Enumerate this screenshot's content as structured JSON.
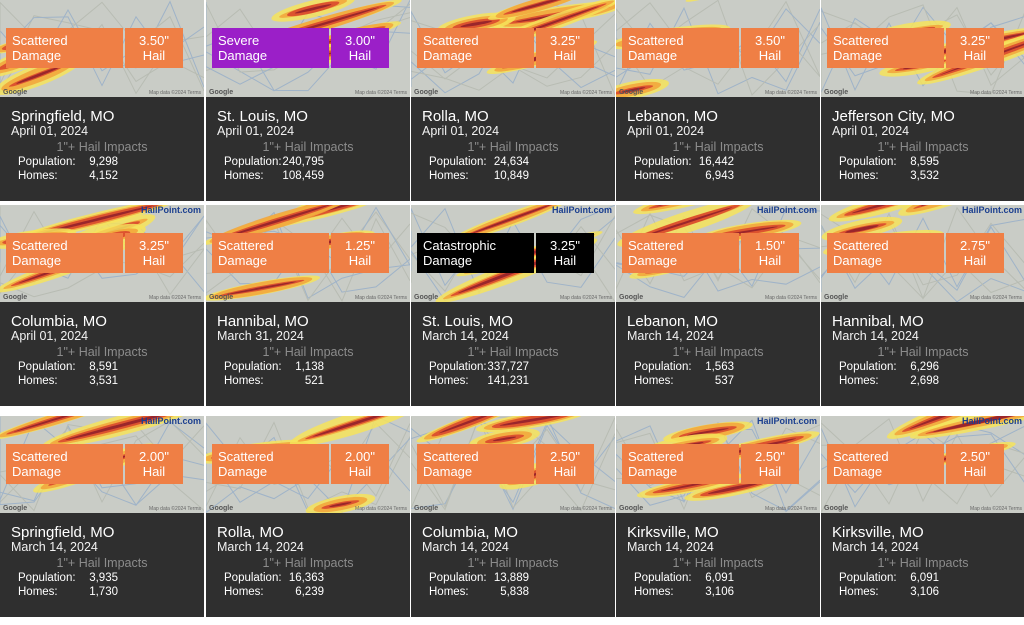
{
  "logo_text": "HailPoint.com",
  "google_text": "Google",
  "map_terms": "Map data ©2024 Terms",
  "labels": {
    "impacts": "1\"+ Hail Impacts",
    "population": "Population:",
    "homes": "Homes:"
  },
  "colors": {
    "Scattered": "#ef7f45",
    "Severe": "#9b1fc8",
    "Catastrophic": "#000000"
  },
  "cards": [
    {
      "damage1": "Scattered",
      "damage2": "Damage",
      "hail1": "3.50\"",
      "hail2": "Hail",
      "city": "Springfield, MO",
      "date": "April 01, 2024",
      "population": "9,298",
      "homes": "4,152",
      "logo": false
    },
    {
      "damage1": "Severe",
      "damage2": "Damage",
      "hail1": "3.00\"",
      "hail2": "Hail",
      "city": "St. Louis, MO",
      "date": "April 01, 2024",
      "population": "240,795",
      "homes": "108,459",
      "logo": false
    },
    {
      "damage1": "Scattered",
      "damage2": "Damage",
      "hail1": "3.25\"",
      "hail2": "Hail",
      "city": "Rolla, MO",
      "date": "April 01, 2024",
      "population": "24,634",
      "homes": "10,849",
      "logo": false
    },
    {
      "damage1": "Scattered",
      "damage2": "Damage",
      "hail1": "3.50\"",
      "hail2": "Hail",
      "city": "Lebanon, MO",
      "date": "April 01, 2024",
      "population": "16,442",
      "homes": "6,943",
      "logo": false
    },
    {
      "damage1": "Scattered",
      "damage2": "Damage",
      "hail1": "3.25\"",
      "hail2": "Hail",
      "city": "Jefferson City, MO",
      "date": "April 01, 2024",
      "population": "8,595",
      "homes": "3,532",
      "logo": false
    },
    {
      "damage1": "Scattered",
      "damage2": "Damage",
      "hail1": "3.25\"",
      "hail2": "Hail",
      "city": "Columbia, MO",
      "date": "April 01, 2024",
      "population": "8,591",
      "homes": "3,531",
      "logo": true
    },
    {
      "damage1": "Scattered",
      "damage2": "Damage",
      "hail1": "1.25\"",
      "hail2": "Hail",
      "city": "Hannibal, MO",
      "date": "March 31, 2024",
      "population": "1,138",
      "homes": "521",
      "logo": false
    },
    {
      "damage1": "Catastrophic",
      "damage2": "Damage",
      "hail1": "3.25\"",
      "hail2": "Hail",
      "city": "St. Louis, MO",
      "date": "March 14, 2024",
      "population": "337,727",
      "homes": "141,231",
      "logo": true
    },
    {
      "damage1": "Scattered",
      "damage2": "Damage",
      "hail1": "1.50\"",
      "hail2": "Hail",
      "city": "Lebanon, MO",
      "date": "March 14, 2024",
      "population": "1,563",
      "homes": "537",
      "logo": true
    },
    {
      "damage1": "Scattered",
      "damage2": "Damage",
      "hail1": "2.75\"",
      "hail2": "Hail",
      "city": "Hannibal, MO",
      "date": "March 14, 2024",
      "population": "6,296",
      "homes": "2,698",
      "logo": true
    },
    {
      "damage1": "Scattered",
      "damage2": "Damage",
      "hail1": "2.00\"",
      "hail2": "Hail",
      "city": "Springfield, MO",
      "date": "March 14, 2024",
      "population": "3,935",
      "homes": "1,730",
      "logo": true
    },
    {
      "damage1": "Scattered",
      "damage2": "Damage",
      "hail1": "2.00\"",
      "hail2": "Hail",
      "city": "Rolla, MO",
      "date": "March 14, 2024",
      "population": "16,363",
      "homes": "6,239",
      "logo": false
    },
    {
      "damage1": "Scattered",
      "damage2": "Damage",
      "hail1": "2.50\"",
      "hail2": "Hail",
      "city": "Columbia, MO",
      "date": "March 14, 2024",
      "population": "13,889",
      "homes": "5,838",
      "logo": false
    },
    {
      "damage1": "Scattered",
      "damage2": "Damage",
      "hail1": "2.50\"",
      "hail2": "Hail",
      "city": "Kirksville, MO",
      "date": "March 14, 2024",
      "population": "6,091",
      "homes": "3,106",
      "logo": true
    },
    {
      "damage1": "Scattered",
      "damage2": "Damage",
      "hail1": "2.50\"",
      "hail2": "Hail",
      "city": "Kirksville, MO",
      "date": "March 14, 2024",
      "population": "6,091",
      "homes": "3,106",
      "logo": true
    }
  ]
}
